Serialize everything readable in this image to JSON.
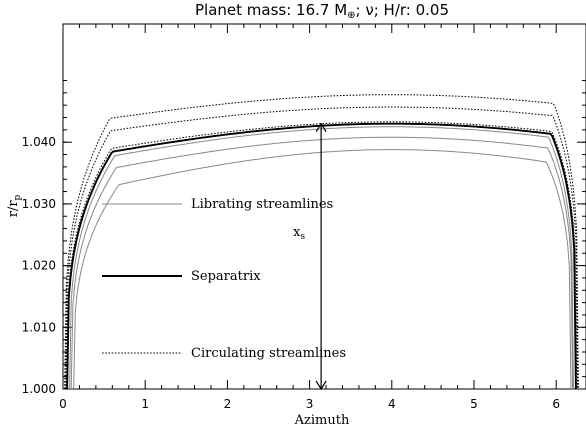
{
  "chart_data": {
    "type": "line",
    "title": {
      "main": "Planet mass: 16.7 M",
      "sym": "⊕",
      "rest": "; ν; H/r: 0.05"
    },
    "xlabel": "Azimuth",
    "ylabel": {
      "main": "r/r",
      "sub": "p"
    },
    "xlim": [
      0,
      6.283
    ],
    "ylim": [
      1.0,
      1.05
    ],
    "xticks": [
      "0",
      "1",
      "2",
      "3",
      "4",
      "5",
      "6"
    ],
    "yticks": [
      "1.000",
      "1.010",
      "1.020",
      "1.030",
      "1.040"
    ],
    "grid": false,
    "series": [
      {
        "name": "Librating streamlines",
        "style": "thin-solid",
        "color": "#888888",
        "peak": 1.0388,
        "left_value": 1.0315,
        "edges": [
          0.13,
          6.18
        ]
      },
      {
        "name": "Librating streamlines",
        "style": "thin-solid",
        "color": "#888888",
        "peak": 1.0408,
        "left_value": 1.0345,
        "edges": [
          0.1,
          6.2
        ]
      },
      {
        "name": "Librating streamlines",
        "style": "thin-solid",
        "color": "#888888",
        "peak": 1.0425,
        "left_value": 1.0365,
        "edges": [
          0.08,
          6.21
        ]
      },
      {
        "name": "Separatrix",
        "style": "thick-solid",
        "color": "#000000",
        "peak": 1.043,
        "left_value": 1.0372,
        "edges": [
          0.05,
          6.24
        ]
      },
      {
        "name": "Circulating streamlines",
        "style": "dotted",
        "color": "#000000",
        "peak": 1.0433,
        "left_value": 1.0378,
        "edges": [
          0.04,
          6.25
        ]
      },
      {
        "name": "Circulating streamlines",
        "style": "dotted",
        "color": "#000000",
        "peak": 1.0457,
        "left_value": 1.0408,
        "edges": [
          0.03,
          6.26
        ]
      },
      {
        "name": "Circulating streamlines",
        "style": "dotted",
        "color": "#000000",
        "peak": 1.0477,
        "left_value": 1.0428,
        "edges": [
          0.02,
          6.27
        ]
      }
    ],
    "annotations": [
      {
        "label_main": "x",
        "label_sub": "s",
        "type": "double-arrow",
        "x": 3.14,
        "y_from": 1.0,
        "y_to": 1.043
      }
    ],
    "legend": [
      {
        "label": "Librating streamlines",
        "style": "thin-solid",
        "color": "#888888"
      },
      {
        "label": "Separatrix",
        "style": "thick-solid",
        "color": "#000000"
      },
      {
        "label": "Circulating streamlines",
        "style": "dotted",
        "color": "#000000"
      }
    ],
    "legend_position": "left"
  }
}
